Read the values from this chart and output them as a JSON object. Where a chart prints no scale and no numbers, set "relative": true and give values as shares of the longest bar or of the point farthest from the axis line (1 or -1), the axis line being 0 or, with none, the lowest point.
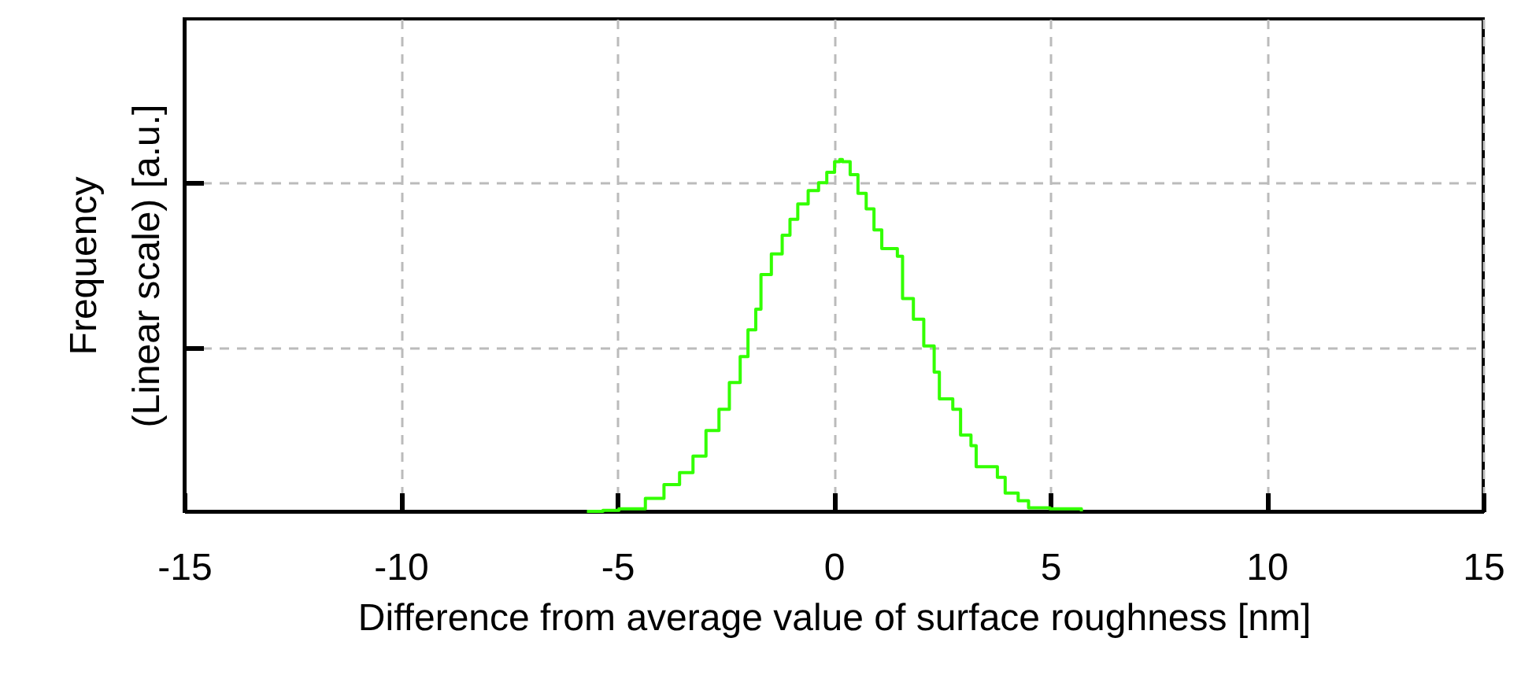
{
  "chart_data": {
    "type": "step",
    "relative": true,
    "xlabel": "Difference from average value of surface roughness [nm]",
    "ylabel": "Frequency\n(Linear scale) [a.u.]",
    "xlim": [
      -15,
      15
    ],
    "xticks": [
      -15,
      -10,
      -5,
      0,
      5,
      10,
      15
    ],
    "grid": true,
    "line_style": "solid",
    "series": [
      {
        "color": "#33ff00",
        "x": [
          -5.7,
          -5.33,
          -4.96,
          -4.35,
          -3.92,
          -3.56,
          -3.25,
          -2.95,
          -2.65,
          -2.41,
          -2.16,
          -1.98,
          -1.8,
          -1.68,
          -1.44,
          -1.19,
          -1.01,
          -0.83,
          -0.59,
          -0.35,
          -0.16,
          0.02,
          0.14,
          0.2,
          0.38,
          0.56,
          0.75,
          0.93,
          1.11,
          1.47,
          1.59,
          1.84,
          2.08,
          2.32,
          2.44,
          2.75,
          2.93,
          3.17,
          3.29,
          3.78,
          3.96,
          4.26,
          4.5,
          4.99,
          5.72
        ],
        "values": [
          0,
          0.003,
          0.007,
          0.037,
          0.076,
          0.11,
          0.157,
          0.23,
          0.29,
          0.366,
          0.44,
          0.516,
          0.575,
          0.673,
          0.732,
          0.785,
          0.83,
          0.874,
          0.912,
          0.934,
          0.964,
          0.994,
          1.0,
          0.994,
          0.957,
          0.904,
          0.86,
          0.8,
          0.747,
          0.725,
          0.605,
          0.546,
          0.47,
          0.396,
          0.32,
          0.29,
          0.217,
          0.187,
          0.127,
          0.097,
          0.052,
          0.03,
          0.01,
          0.007,
          0
        ]
      }
    ]
  }
}
